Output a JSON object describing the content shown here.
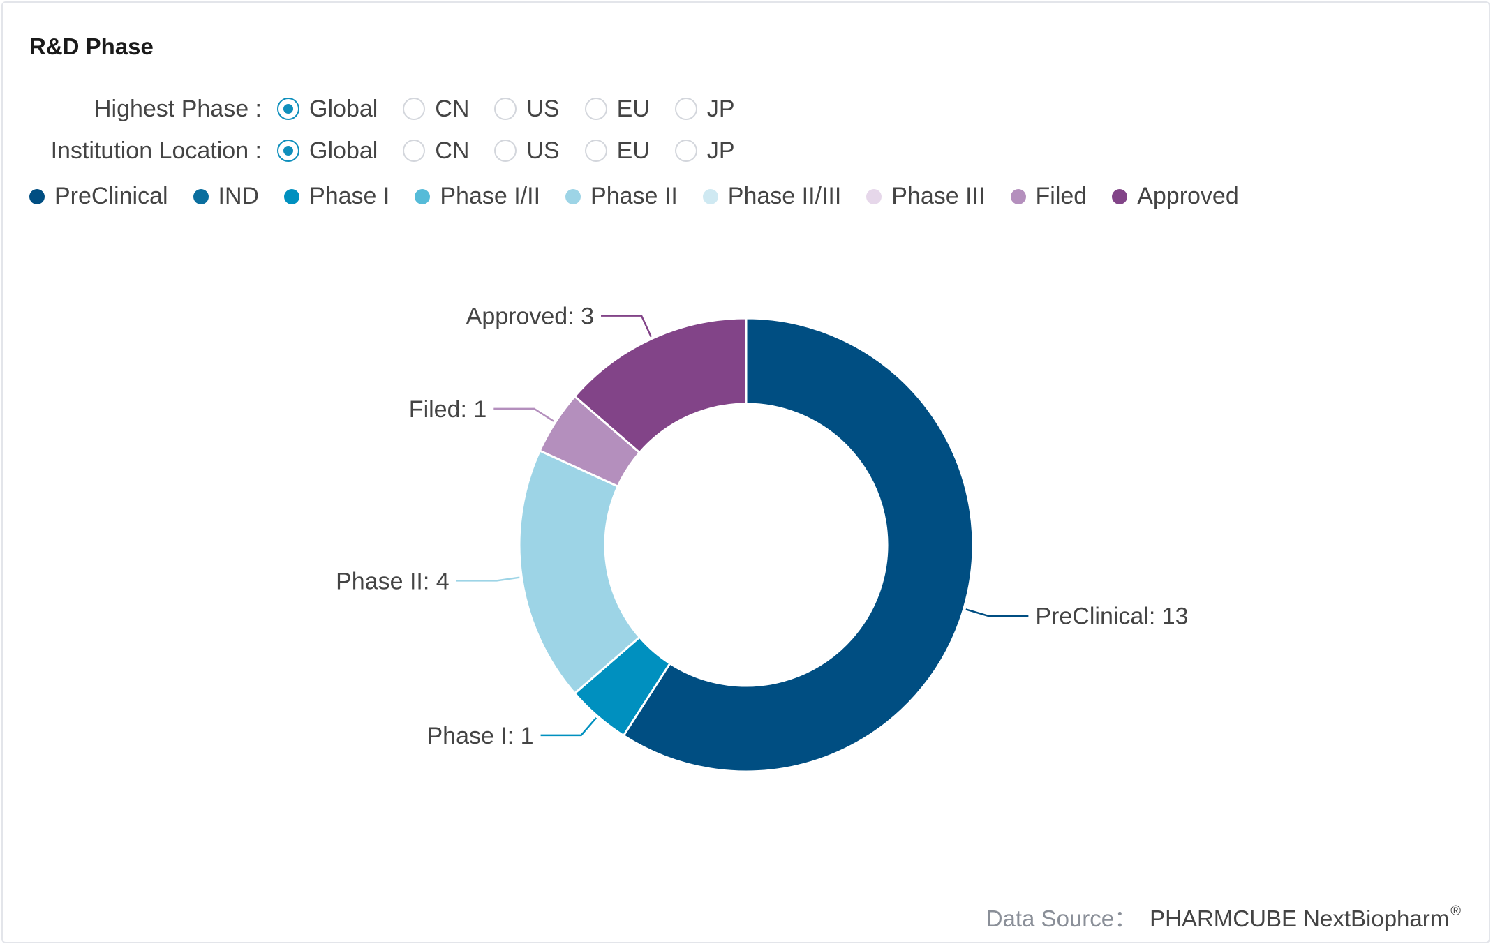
{
  "title": "R&D Phase",
  "filters": [
    {
      "label": "Highest Phase :",
      "options": [
        "Global",
        "CN",
        "US",
        "EU",
        "JP"
      ],
      "selected": "Global"
    },
    {
      "label": "Institution Location :",
      "options": [
        "Global",
        "CN",
        "US",
        "EU",
        "JP"
      ],
      "selected": "Global"
    }
  ],
  "footer": {
    "label": "Data Source：",
    "value": "PHARMCUBE NextBiopharm",
    "mark": "®"
  },
  "chart_data": {
    "type": "pie",
    "donut": true,
    "legend_position": "top-left",
    "legend": [
      {
        "name": "PreClinical",
        "color": "#004e82"
      },
      {
        "name": "IND",
        "color": "#0a6e9e"
      },
      {
        "name": "Phase I",
        "color": "#0090bf"
      },
      {
        "name": "Phase I/II",
        "color": "#55bbd8"
      },
      {
        "name": "Phase II",
        "color": "#9dd4e6"
      },
      {
        "name": "Phase II/III",
        "color": "#cfe9f2"
      },
      {
        "name": "Phase III",
        "color": "#e6d7ea"
      },
      {
        "name": "Filed",
        "color": "#b48fbd"
      },
      {
        "name": "Approved",
        "color": "#824488"
      }
    ],
    "slices": [
      {
        "name": "PreClinical",
        "value": 13,
        "label": "PreClinical: 13",
        "color": "#004e82"
      },
      {
        "name": "Phase I",
        "value": 1,
        "label": "Phase I: 1",
        "color": "#0090bf"
      },
      {
        "name": "Phase II",
        "value": 4,
        "label": "Phase II: 4",
        "color": "#9dd4e6"
      },
      {
        "name": "Filed",
        "value": 1,
        "label": "Filed: 1",
        "color": "#b48fbd"
      },
      {
        "name": "Approved",
        "value": 3,
        "label": "Approved: 3",
        "color": "#824488"
      }
    ]
  }
}
